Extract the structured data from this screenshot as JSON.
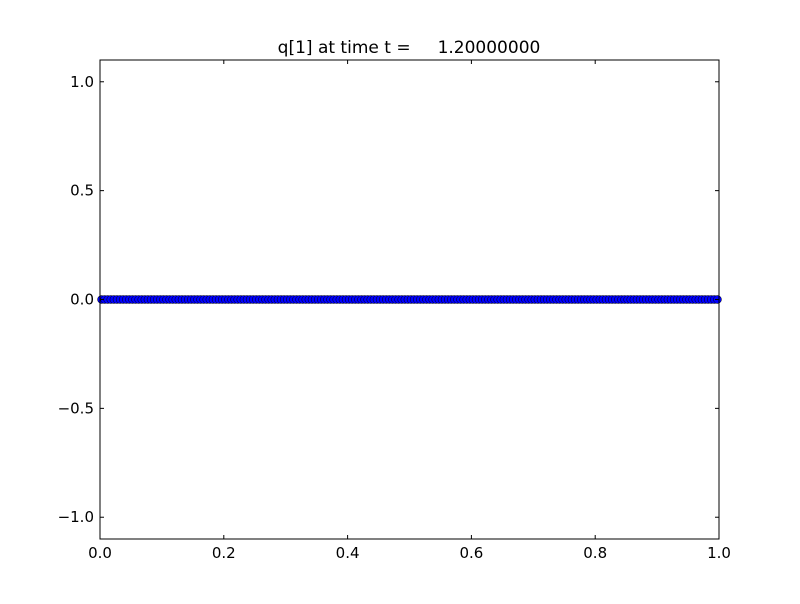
{
  "chart_data": {
    "type": "scatter",
    "title": "q[1] at time t =     1.20000000",
    "xlabel": "",
    "ylabel": "",
    "xlim": [
      0.0,
      1.0
    ],
    "ylim": [
      -1.1,
      1.1
    ],
    "x_ticks": [
      "0.0",
      "0.2",
      "0.4",
      "0.6",
      "0.8",
      "1.0"
    ],
    "y_ticks": [
      "−1.0",
      "−0.5",
      "0.0",
      "0.5",
      "1.0"
    ],
    "x_tick_values": [
      0.0,
      0.2,
      0.4,
      0.6,
      0.8,
      1.0
    ],
    "y_tick_values": [
      -1.0,
      -0.5,
      0.0,
      0.5,
      1.0
    ],
    "grid": false,
    "marker": "circle",
    "marker_color": "#0000ff",
    "series": [
      {
        "n_points": 200,
        "x_start": 0.0025,
        "x_step": 0.005,
        "y_constant": 0.0
      }
    ]
  }
}
